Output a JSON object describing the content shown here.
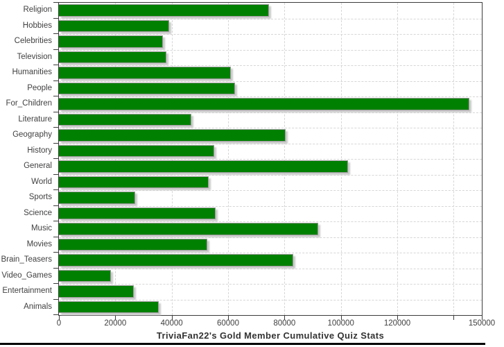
{
  "chart_data": {
    "type": "bar",
    "orientation": "horizontal",
    "title": "TriviaFan22's Gold Member Cumulative Quiz Stats",
    "categories": [
      "Religion",
      "Hobbies",
      "Celebrities",
      "Television",
      "Humanities",
      "People",
      "For_Children",
      "Literature",
      "Geography",
      "History",
      "General",
      "World",
      "Sports",
      "Science",
      "Music",
      "Movies",
      "Brain_Teasers",
      "Video_Games",
      "Entertainment",
      "Animals"
    ],
    "values": [
      74500,
      39000,
      37000,
      38000,
      61000,
      62500,
      145500,
      47000,
      80500,
      55000,
      102500,
      53000,
      27000,
      55500,
      92000,
      52500,
      83000,
      18500,
      26500,
      35500
    ],
    "xlabel": "",
    "ylabel": "",
    "xlim": [
      0,
      150000
    ],
    "x_ticks": [
      0,
      20000,
      40000,
      60000,
      80000,
      100000,
      120000,
      140000,
      150000
    ],
    "x_tick_labels": [
      "0",
      "20000",
      "40000",
      "60000",
      "80000",
      "100000",
      "120000",
      "",
      "150000"
    ],
    "legend_position": "none",
    "grid": "dashed-both-axes",
    "colors": {
      "bar": "#008000",
      "bar_outline": "#9a9a9a",
      "bar_shadow": "#c9c9c9",
      "gridline": "#d6d6d6",
      "axis": "#3a3a3a",
      "tick_label": "#404040",
      "title": "#333333",
      "background": "#ffffff",
      "bottom_edge": "#000000"
    }
  }
}
